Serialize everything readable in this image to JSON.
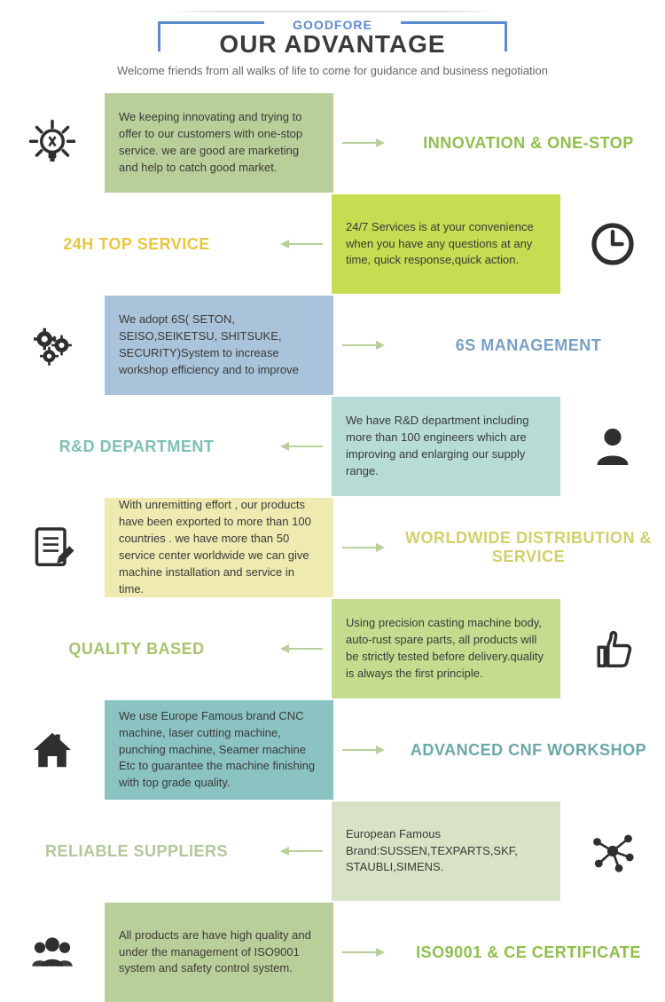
{
  "header": {
    "brand": "GOODFORE",
    "title": "OUR ADVANTAGE",
    "subtitle": "Welcome friends from all walks of life to come for guidance and business negotiation"
  },
  "colors": {
    "icon": "#2f2f2f",
    "arrow": "#b9cf9a"
  },
  "rows": [
    {
      "side": "left",
      "icon": "lightbulb",
      "card_bg": "#b9cf9a",
      "text": "We keeping innovating and trying to offer to our customers with one-stop service. we are good are marketing and help to catch good market.",
      "title": "INNOVATION & ONE-STOP",
      "title_color": "#8fbf4a"
    },
    {
      "side": "right",
      "icon": "clock",
      "card_bg": "#c7dc50",
      "text": "24/7 Services is at your convenience when you have any questions at any time, quick response,quick action.",
      "title": "24H TOP SERVICE",
      "title_color": "#e8c642"
    },
    {
      "side": "left",
      "icon": "gears",
      "card_bg": "#a9c3da",
      "text": "We adopt 6S( SETON, SEISO,SEIKETSU, SHITSUKE, SECURITY)System to increase workshop efficiency and to improve",
      "title": "6S MANAGEMENT",
      "title_color": "#77a0c8"
    },
    {
      "side": "right",
      "icon": "person",
      "card_bg": "#b6dcd5",
      "text": "We have R&D department including more than 100 engineers which are improving and enlarging our supply range.",
      "title": "R&D DEPARTMENT",
      "title_color": "#7ec0b3"
    },
    {
      "side": "left",
      "icon": "document",
      "card_bg": "#eeeab0",
      "text": "With unremitting effort , our products have been exported to more than 100 countries . we have more than 50 service center worldwide we can give machine installation and service in time.",
      "title": "WORLDWIDE DISTRIBUTION & SERVICE",
      "title_color": "#d2d069"
    },
    {
      "side": "right",
      "icon": "thumbsup",
      "card_bg": "#c3dc8e",
      "text": "Using precision casting machine body, auto-rust spare parts, all products will be strictly tested before delivery.quality is always the first principle.",
      "title": "QUALITY BASED",
      "title_color": "#a7c46a"
    },
    {
      "side": "left",
      "icon": "home",
      "card_bg": "#8bc2c2",
      "text": "We use Europe Famous brand CNC machine, laser cutting machine, punching machine, Seamer machine Etc to guarantee the machine finishing with top grade quality.",
      "title": "ADVANCED CNF WORKSHOP",
      "title_color": "#6aa8a8"
    },
    {
      "side": "right",
      "icon": "network",
      "card_bg": "#d7e3c4",
      "text": "European Famous Brand:SUSSEN,TEXPARTS,SKF, STAUBLI,SIMENS.",
      "title": "RELIABLE SUPPLIERS",
      "title_color": "#b3c79a"
    },
    {
      "side": "left",
      "icon": "people",
      "card_bg": "#b9cf9a",
      "text": "All products are have high quality and under the management of ISO9001 system and safety control system.",
      "title": "ISO9001 & CE CERTIFICATE",
      "title_color": "#8fbf4a"
    }
  ]
}
